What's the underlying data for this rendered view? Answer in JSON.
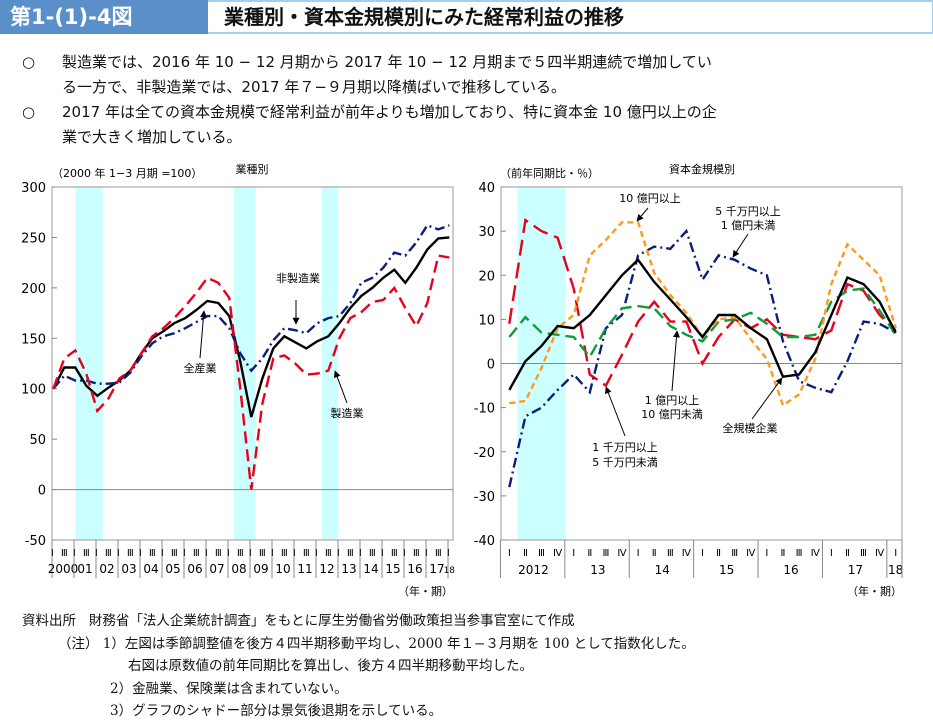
{
  "header": {
    "figure_number": "第1-(1)-4図",
    "title": "業種別・資本金規模別にみた経常利益の推移"
  },
  "summary": [
    {
      "marker": "○",
      "line1": "製造業では、2016 年 10 − 12 月期から 2017 年 10 − 12 月期まで５四半期連続で増加してい",
      "line2": "る一方で、非製造業では、2017 年７−９月期以降横ばいで推移している。"
    },
    {
      "marker": "○",
      "line1": "2017 年は全ての資本金規模で経常利益が前年よりも増加しており、特に資本金 10 億円以上の企",
      "line2": "業で大きく増加している。"
    }
  ],
  "notes": {
    "source_label": "資料出所",
    "source": "財務省「法人企業統計調査」をもとに厚生労働省労働政策担当参事官室にて作成",
    "note_label": "（注）",
    "items": [
      "1）左図は季節調整値を後方４四半期移動平均し、2000 年１−３月期を 100 として指数化した。",
      "右図は原数値の前年同期比を算出し、後方４四半期移動平均した。",
      "2）金融業、保険業は含まれていない。",
      "3）グラフのシャドー部分は景気後退期を示している。"
    ]
  },
  "colors": {
    "all": "#000000",
    "red": "#e8001c",
    "navy": "#0a1f7a",
    "green": "#129a3a",
    "orange": "#ff9a1a",
    "shade": "#ccffff",
    "header": "#5b8fc9"
  },
  "chart_data": [
    {
      "type": "line",
      "title": "業種別",
      "ylabel": "（2000 年 1−3 月期 =100）",
      "xlabel": "（年・期）",
      "ylim": [
        -50,
        300
      ],
      "yticks": [
        300,
        250,
        200,
        150,
        100,
        50,
        0,
        -50
      ],
      "year_labels": [
        "2000",
        "01",
        "02",
        "03",
        "04",
        "05",
        "06",
        "07",
        "08",
        "09",
        "10",
        "11",
        "12",
        "13",
        "14",
        "15",
        "16",
        "17",
        "18"
      ],
      "quarter_tick_labels": [
        "Ⅰ",
        "Ⅲ"
      ],
      "shaded_periods_years": [
        [
          2001.0,
          2002.25
        ],
        [
          2008.2,
          2009.2
        ],
        [
          2012.2,
          2012.95
        ]
      ],
      "x_years": [
        2000,
        2000.5,
        2001,
        2001.5,
        2002,
        2002.5,
        2003,
        2003.5,
        2004,
        2004.5,
        2005,
        2005.5,
        2006,
        2006.5,
        2007,
        2007.5,
        2008,
        2008.5,
        2009,
        2009.5,
        2010,
        2010.5,
        2011,
        2011.5,
        2012,
        2012.5,
        2013,
        2013.5,
        2014,
        2014.5,
        2015,
        2015.5,
        2016,
        2016.5,
        2017,
        2017.5,
        2018
      ],
      "series": [
        {
          "name": "全産業",
          "color_key": "all",
          "style": "solid",
          "values": [
            100,
            121,
            121,
            103,
            93,
            101,
            108,
            118,
            135,
            150,
            157,
            165,
            170,
            178,
            187,
            185,
            172,
            127,
            72,
            110,
            140,
            152,
            146,
            140,
            147,
            152,
            165,
            180,
            192,
            200,
            210,
            218,
            205,
            220,
            238,
            249,
            250
          ]
        },
        {
          "name": "非製造業",
          "color_key": "navy",
          "style": "dashdot",
          "values": [
            100,
            113,
            108,
            108,
            105,
            105,
            106,
            116,
            132,
            145,
            152,
            155,
            160,
            166,
            172,
            172,
            160,
            135,
            118,
            130,
            148,
            160,
            158,
            155,
            165,
            170,
            172,
            185,
            205,
            210,
            220,
            235,
            232,
            245,
            262,
            258,
            262
          ]
        },
        {
          "name": "製造業",
          "color_key": "red",
          "style": "dash",
          "values": [
            100,
            130,
            138,
            115,
            78,
            90,
            110,
            118,
            135,
            152,
            160,
            170,
            182,
            195,
            210,
            205,
            190,
            100,
            0,
            85,
            130,
            133,
            125,
            114,
            115,
            118,
            150,
            170,
            176,
            186,
            188,
            200,
            180,
            162,
            185,
            232,
            230
          ]
        }
      ],
      "annotations": [
        "非製造業",
        "全産業",
        "製造業"
      ]
    },
    {
      "type": "line",
      "title": "資本金規模別",
      "ylabel": "（前年同期比・％）",
      "xlabel": "（年・期）",
      "ylim": [
        -40,
        40
      ],
      "yticks": [
        40,
        30,
        20,
        10,
        0,
        -10,
        -20,
        -30,
        -40
      ],
      "year_labels": [
        "2012",
        "13",
        "14",
        "15",
        "16",
        "17",
        "18"
      ],
      "quarter_tick_labels": [
        "Ⅰ",
        "Ⅱ",
        "Ⅲ",
        "Ⅳ"
      ],
      "shaded_periods_quarter_index": [
        [
          0.5,
          3.5
        ]
      ],
      "x": [
        "2012-Ⅰ",
        "2012-Ⅱ",
        "2012-Ⅲ",
        "2012-Ⅳ",
        "2013-Ⅰ",
        "2013-Ⅱ",
        "2013-Ⅲ",
        "2013-Ⅳ",
        "2014-Ⅰ",
        "2014-Ⅱ",
        "2014-Ⅲ",
        "2014-Ⅳ",
        "2015-Ⅰ",
        "2015-Ⅱ",
        "2015-Ⅲ",
        "2015-Ⅳ",
        "2016-Ⅰ",
        "2016-Ⅱ",
        "2016-Ⅲ",
        "2016-Ⅳ",
        "2017-Ⅰ",
        "2017-Ⅱ",
        "2017-Ⅲ",
        "2017-Ⅳ",
        "2018-Ⅰ"
      ],
      "series": [
        {
          "name": "1 千万円以上 5 千万円未満",
          "color_key": "red",
          "style": "longdash",
          "values": [
            9,
            32.5,
            30,
            28.5,
            17,
            -2.5,
            -5,
            2,
            9.5,
            14,
            9.5,
            9.5,
            0,
            6,
            10,
            8,
            10,
            6.5,
            6,
            5.5,
            7.5,
            18,
            16.5,
            11,
            7.5
          ]
        },
        {
          "name": "5 千万円以上 1 億円未満",
          "color_key": "navy",
          "style": "dashdot",
          "values": [
            -28,
            -12,
            -10,
            -6,
            -2.5,
            -6.5,
            8,
            11,
            24.5,
            26.5,
            26,
            30,
            19,
            24.5,
            23.5,
            21.5,
            20,
            5,
            -4,
            -5.5,
            -6.5,
            0.5,
            9.5,
            9,
            7
          ]
        },
        {
          "name": "1 億円以上 10 億円未満",
          "color_key": "green",
          "style": "dash",
          "values": [
            6,
            10.5,
            7,
            6.5,
            6,
            1.5,
            8,
            12.5,
            13,
            12.5,
            8.5,
            6.5,
            5,
            9.5,
            10,
            11.5,
            9,
            6,
            6,
            6.5,
            14,
            16.5,
            17,
            12,
            6.5
          ]
        },
        {
          "name": "10 億円以上",
          "color_key": "orange",
          "style": "shortdash",
          "values": [
            -9,
            -8.5,
            -1,
            8,
            11,
            24.5,
            28,
            32,
            32,
            20.5,
            15.5,
            11.5,
            6,
            10,
            10.5,
            5.5,
            1,
            -9.5,
            -7,
            1,
            18,
            27,
            23.5,
            20,
            8
          ]
        },
        {
          "name": "全規模企業",
          "color_key": "all",
          "style": "solid",
          "values": [
            -6,
            0.5,
            4,
            8.5,
            8,
            11,
            15.5,
            20,
            23.5,
            18.5,
            14.5,
            10.5,
            6,
            11,
            11,
            8,
            5.5,
            -3,
            -2.5,
            2.5,
            11,
            19.5,
            18,
            14,
            7
          ]
        }
      ],
      "annotations": [
        "10 億円以上",
        "5 千万円以上",
        "1 億円未満",
        "1 億円以上",
        "10 億円未満",
        "1 千万円以上",
        "5 千万円未満",
        "全規模企業"
      ]
    }
  ]
}
